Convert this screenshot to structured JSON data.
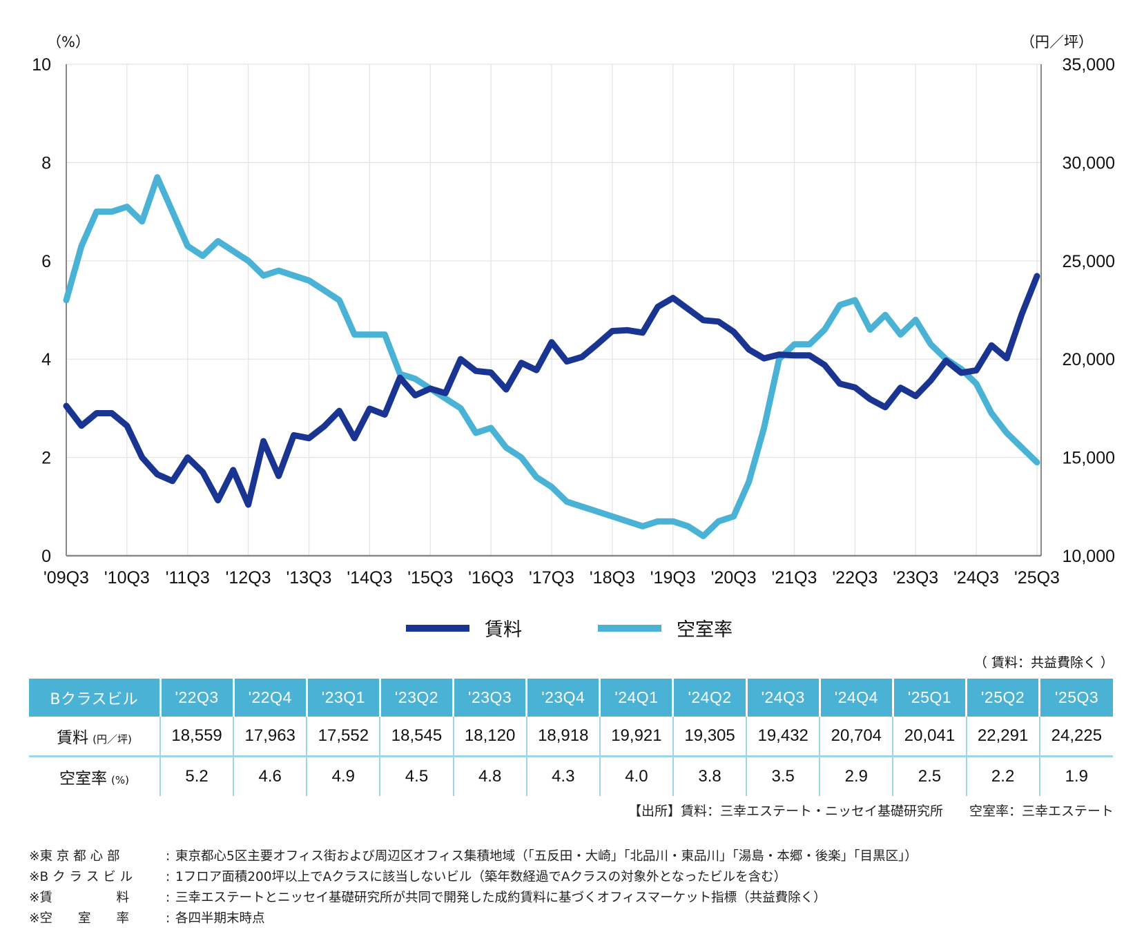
{
  "chart_data": {
    "type": "line",
    "title": "",
    "left_axis_label": "（%）",
    "right_axis_label": "（円／坪）",
    "left_ylim": [
      0,
      10
    ],
    "left_yticks": [
      "0",
      "2",
      "4",
      "6",
      "8",
      "10"
    ],
    "right_ylim": [
      10000,
      35000
    ],
    "right_yticks": [
      "10,000",
      "15,000",
      "20,000",
      "25,000",
      "30,000",
      "35,000"
    ],
    "xtick_labels": [
      "'09Q3",
      "'10Q3",
      "'11Q3",
      "'12Q3",
      "'13Q3",
      "'14Q3",
      "'15Q3",
      "'16Q3",
      "'17Q3",
      "'18Q3",
      "'19Q3",
      "'20Q3",
      "'21Q3",
      "'22Q3",
      "'23Q3",
      "'24Q3",
      "'25Q3"
    ],
    "grid": true,
    "legend_position": "bottom-center",
    "x": [
      "09Q3",
      "09Q4",
      "10Q1",
      "10Q2",
      "10Q3",
      "10Q4",
      "11Q1",
      "11Q2",
      "11Q3",
      "11Q4",
      "12Q1",
      "12Q2",
      "12Q3",
      "12Q4",
      "13Q1",
      "13Q2",
      "13Q3",
      "13Q4",
      "14Q1",
      "14Q2",
      "14Q3",
      "14Q4",
      "15Q1",
      "15Q2",
      "15Q3",
      "15Q4",
      "16Q1",
      "16Q2",
      "16Q3",
      "16Q4",
      "17Q1",
      "17Q2",
      "17Q3",
      "17Q4",
      "18Q1",
      "18Q2",
      "18Q3",
      "18Q4",
      "19Q1",
      "19Q2",
      "19Q3",
      "19Q4",
      "20Q1",
      "20Q2",
      "20Q3",
      "20Q4",
      "21Q1",
      "21Q2",
      "21Q3",
      "21Q4",
      "22Q1",
      "22Q2",
      "22Q3",
      "22Q4",
      "23Q1",
      "23Q2",
      "23Q3",
      "23Q4",
      "24Q1",
      "24Q2",
      "24Q3",
      "24Q4",
      "25Q1",
      "25Q2",
      "25Q3"
    ],
    "series": [
      {
        "name": "賃料",
        "axis": "right",
        "color": "#1a3591",
        "values": [
          17620,
          16610,
          17250,
          17250,
          16610,
          15000,
          14140,
          13800,
          15000,
          14250,
          12820,
          14360,
          12600,
          15830,
          14060,
          16130,
          15980,
          16580,
          17370,
          15980,
          17480,
          17180,
          19060,
          18160,
          18500,
          18270,
          20000,
          19400,
          19320,
          18460,
          19810,
          19440,
          20860,
          19880,
          20110,
          20750,
          21430,
          21470,
          21350,
          22660,
          23110,
          22550,
          21980,
          21910,
          21390,
          20490,
          20040,
          20230,
          20190,
          20190,
          19700,
          18750,
          18559,
          17963,
          17552,
          18545,
          18120,
          18918,
          19921,
          19305,
          19432,
          20704,
          20041,
          22291,
          24225
        ]
      },
      {
        "name": "空室率",
        "axis": "left",
        "color": "#4ab2d4",
        "values": [
          5.2,
          6.3,
          7.0,
          7.0,
          7.1,
          6.8,
          7.7,
          7.0,
          6.3,
          6.1,
          6.4,
          6.2,
          6.0,
          5.7,
          5.8,
          5.7,
          5.6,
          5.4,
          5.2,
          4.5,
          4.5,
          4.5,
          3.7,
          3.6,
          3.4,
          3.2,
          3.0,
          2.5,
          2.6,
          2.2,
          2.0,
          1.6,
          1.4,
          1.1,
          1.0,
          0.9,
          0.8,
          0.7,
          0.6,
          0.7,
          0.7,
          0.6,
          0.4,
          0.7,
          0.8,
          1.5,
          2.6,
          4.0,
          4.3,
          4.3,
          4.6,
          5.1,
          5.2,
          4.6,
          4.9,
          4.5,
          4.8,
          4.3,
          4.0,
          3.8,
          3.5,
          2.9,
          2.5,
          2.2,
          1.9
        ]
      }
    ]
  },
  "legend": {
    "items": [
      {
        "label": "賃料",
        "color": "#1a3591"
      },
      {
        "label": "空室率",
        "color": "#4ab2d4"
      }
    ]
  },
  "table": {
    "note": "（ 賃料：共益費除く ）",
    "corner_label": "Bクラスビル",
    "columns": [
      "'22Q3",
      "'22Q4",
      "'23Q1",
      "'23Q2",
      "'23Q3",
      "'23Q4",
      "'24Q1",
      "'24Q2",
      "'24Q3",
      "'24Q4",
      "'25Q1",
      "'25Q2",
      "'25Q3"
    ],
    "rows": [
      {
        "label": "賃料",
        "unit": "(円／坪)",
        "values": [
          "18,559",
          "17,963",
          "17,552",
          "18,545",
          "18,120",
          "18,918",
          "19,921",
          "19,305",
          "19,432",
          "20,704",
          "20,041",
          "22,291",
          "24,225"
        ]
      },
      {
        "label": "空室率",
        "unit": "(%)",
        "values": [
          "5.2",
          "4.6",
          "4.9",
          "4.5",
          "4.8",
          "4.3",
          "4.0",
          "3.8",
          "3.5",
          "2.9",
          "2.5",
          "2.2",
          "1.9"
        ]
      }
    ],
    "header_color": "#4ab2d4"
  },
  "source": "【出所】賃料：三幸エステート・ニッセイ基礎研究所　　空室率：三幸エステート",
  "footnotes": [
    {
      "term": "※東 京 都 心 部",
      "text": "東京都心5区主要オフィス街および周辺区オフィス集積地域（「五反田・大崎」「北品川・東品川」「湯島・本郷・後楽」「目黒区」）"
    },
    {
      "term": "※B ク ラ ス ビ ル",
      "text": "1フロア面積200坪以上でAクラスに該当しないビル（築年数経過でAクラスの対象外となったビルを含む）"
    },
    {
      "term": "※賃　　　　　料",
      "text": "三幸エステートとニッセイ基礎研究所が共同で開発した成約賃料に基づくオフィスマーケット指標（共益費除く）"
    },
    {
      "term": "※空　　室　　率",
      "text": "各四半期末時点"
    }
  ]
}
